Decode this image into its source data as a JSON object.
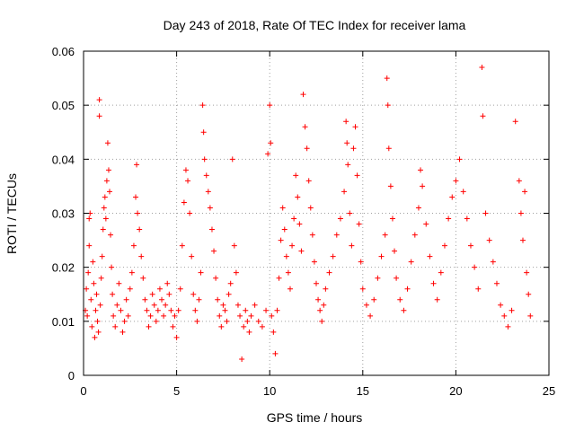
{
  "chart_data": {
    "type": "scatter",
    "title": "Day 243 of 2018, Rate Of TEC Index for receiver lama",
    "xlabel": "GPS time / hours",
    "ylabel": "ROTI / TECUs",
    "xlim": [
      0,
      25
    ],
    "ylim": [
      0,
      0.06
    ],
    "xticks": [
      0,
      5,
      10,
      15,
      20,
      25
    ],
    "yticks": [
      0,
      0.01,
      0.02,
      0.03,
      0.04,
      0.05,
      0.06
    ],
    "xtick_labels": [
      "0",
      "5",
      "10",
      "15",
      "20",
      "25"
    ],
    "ytick_labels": [
      "0",
      "0.01",
      "0.02",
      "0.03",
      "0.04",
      "0.05",
      "0.06"
    ],
    "grid": true,
    "marker": "+",
    "color": "#ff0000",
    "series": [
      {
        "points": [
          [
            0.1,
            0.012
          ],
          [
            0.15,
            0.016
          ],
          [
            0.2,
            0.011
          ],
          [
            0.25,
            0.019
          ],
          [
            0.3,
            0.024
          ],
          [
            0.3,
            0.029
          ],
          [
            0.35,
            0.03
          ],
          [
            0.4,
            0.014
          ],
          [
            0.45,
            0.009
          ],
          [
            0.5,
            0.021
          ],
          [
            0.55,
            0.017
          ],
          [
            0.6,
            0.007
          ],
          [
            0.65,
            0.012
          ],
          [
            0.7,
            0.015
          ],
          [
            0.75,
            0.01
          ],
          [
            0.8,
            0.008
          ],
          [
            0.85,
            0.051
          ],
          [
            0.85,
            0.048
          ],
          [
            0.9,
            0.013
          ],
          [
            0.95,
            0.018
          ],
          [
            1.0,
            0.022
          ],
          [
            1.05,
            0.027
          ],
          [
            1.1,
            0.031
          ],
          [
            1.15,
            0.033
          ],
          [
            1.2,
            0.029
          ],
          [
            1.25,
            0.036
          ],
          [
            1.3,
            0.043
          ],
          [
            1.35,
            0.038
          ],
          [
            1.4,
            0.034
          ],
          [
            1.45,
            0.026
          ],
          [
            1.5,
            0.02
          ],
          [
            1.55,
            0.015
          ],
          [
            1.6,
            0.011
          ],
          [
            1.7,
            0.009
          ],
          [
            1.8,
            0.013
          ],
          [
            1.9,
            0.017
          ],
          [
            2.0,
            0.012
          ],
          [
            2.1,
            0.008
          ],
          [
            2.2,
            0.01
          ],
          [
            2.3,
            0.014
          ],
          [
            2.4,
            0.011
          ],
          [
            2.5,
            0.016
          ],
          [
            2.6,
            0.019
          ],
          [
            2.7,
            0.024
          ],
          [
            2.8,
            0.033
          ],
          [
            2.85,
            0.039
          ],
          [
            2.9,
            0.03
          ],
          [
            3.0,
            0.027
          ],
          [
            3.1,
            0.022
          ],
          [
            3.2,
            0.018
          ],
          [
            3.3,
            0.014
          ],
          [
            3.4,
            0.012
          ],
          [
            3.5,
            0.009
          ],
          [
            3.6,
            0.011
          ],
          [
            3.7,
            0.015
          ],
          [
            3.8,
            0.013
          ],
          [
            3.9,
            0.01
          ],
          [
            4.0,
            0.012
          ],
          [
            4.1,
            0.016
          ],
          [
            4.2,
            0.014
          ],
          [
            4.3,
            0.011
          ],
          [
            4.4,
            0.013
          ],
          [
            4.5,
            0.017
          ],
          [
            4.6,
            0.015
          ],
          [
            4.7,
            0.012
          ],
          [
            4.8,
            0.009
          ],
          [
            4.9,
            0.011
          ],
          [
            5.0,
            0.007
          ],
          [
            5.1,
            0.012
          ],
          [
            5.2,
            0.016
          ],
          [
            5.3,
            0.024
          ],
          [
            5.4,
            0.032
          ],
          [
            5.5,
            0.038
          ],
          [
            5.6,
            0.036
          ],
          [
            5.7,
            0.03
          ],
          [
            5.8,
            0.022
          ],
          [
            5.9,
            0.015
          ],
          [
            6.0,
            0.012
          ],
          [
            6.1,
            0.01
          ],
          [
            6.2,
            0.014
          ],
          [
            6.3,
            0.019
          ],
          [
            6.4,
            0.05
          ],
          [
            6.45,
            0.045
          ],
          [
            6.5,
            0.04
          ],
          [
            6.6,
            0.037
          ],
          [
            6.7,
            0.034
          ],
          [
            6.8,
            0.031
          ],
          [
            6.9,
            0.027
          ],
          [
            7.0,
            0.023
          ],
          [
            7.1,
            0.018
          ],
          [
            7.2,
            0.014
          ],
          [
            7.3,
            0.011
          ],
          [
            7.4,
            0.009
          ],
          [
            7.5,
            0.013
          ],
          [
            7.6,
            0.012
          ],
          [
            7.7,
            0.01
          ],
          [
            7.8,
            0.015
          ],
          [
            7.9,
            0.017
          ],
          [
            8.0,
            0.04
          ],
          [
            8.1,
            0.024
          ],
          [
            8.2,
            0.019
          ],
          [
            8.3,
            0.013
          ],
          [
            8.4,
            0.011
          ],
          [
            8.5,
            0.003
          ],
          [
            8.6,
            0.009
          ],
          [
            8.7,
            0.012
          ],
          [
            8.8,
            0.01
          ],
          [
            8.9,
            0.008
          ],
          [
            9.0,
            0.011
          ],
          [
            9.2,
            0.013
          ],
          [
            9.4,
            0.01
          ],
          [
            9.6,
            0.009
          ],
          [
            9.8,
            0.012
          ],
          [
            9.9,
            0.041
          ],
          [
            10.0,
            0.05
          ],
          [
            10.05,
            0.043
          ],
          [
            10.1,
            0.011
          ],
          [
            10.2,
            0.008
          ],
          [
            10.3,
            0.004
          ],
          [
            10.4,
            0.012
          ],
          [
            10.5,
            0.018
          ],
          [
            10.6,
            0.025
          ],
          [
            10.7,
            0.031
          ],
          [
            10.8,
            0.027
          ],
          [
            10.9,
            0.022
          ],
          [
            11.0,
            0.019
          ],
          [
            11.1,
            0.016
          ],
          [
            11.2,
            0.024
          ],
          [
            11.3,
            0.029
          ],
          [
            11.4,
            0.037
          ],
          [
            11.5,
            0.033
          ],
          [
            11.6,
            0.028
          ],
          [
            11.7,
            0.023
          ],
          [
            11.8,
            0.052
          ],
          [
            11.9,
            0.046
          ],
          [
            12.0,
            0.042
          ],
          [
            12.1,
            0.036
          ],
          [
            12.2,
            0.031
          ],
          [
            12.3,
            0.026
          ],
          [
            12.4,
            0.021
          ],
          [
            12.5,
            0.017
          ],
          [
            12.6,
            0.014
          ],
          [
            12.7,
            0.012
          ],
          [
            12.8,
            0.01
          ],
          [
            12.9,
            0.013
          ],
          [
            13.0,
            0.016
          ],
          [
            13.2,
            0.019
          ],
          [
            13.4,
            0.022
          ],
          [
            13.6,
            0.026
          ],
          [
            13.8,
            0.029
          ],
          [
            14.0,
            0.034
          ],
          [
            14.1,
            0.047
          ],
          [
            14.15,
            0.043
          ],
          [
            14.2,
            0.039
          ],
          [
            14.3,
            0.03
          ],
          [
            14.4,
            0.024
          ],
          [
            14.5,
            0.042
          ],
          [
            14.6,
            0.046
          ],
          [
            14.7,
            0.037
          ],
          [
            14.8,
            0.028
          ],
          [
            14.9,
            0.021
          ],
          [
            15.0,
            0.016
          ],
          [
            15.2,
            0.013
          ],
          [
            15.4,
            0.011
          ],
          [
            15.6,
            0.014
          ],
          [
            15.8,
            0.018
          ],
          [
            16.0,
            0.022
          ],
          [
            16.2,
            0.026
          ],
          [
            16.3,
            0.055
          ],
          [
            16.35,
            0.05
          ],
          [
            16.4,
            0.042
          ],
          [
            16.5,
            0.035
          ],
          [
            16.6,
            0.029
          ],
          [
            16.7,
            0.023
          ],
          [
            16.8,
            0.018
          ],
          [
            17.0,
            0.014
          ],
          [
            17.2,
            0.012
          ],
          [
            17.4,
            0.016
          ],
          [
            17.6,
            0.021
          ],
          [
            17.8,
            0.026
          ],
          [
            18.0,
            0.031
          ],
          [
            18.1,
            0.038
          ],
          [
            18.2,
            0.035
          ],
          [
            18.4,
            0.028
          ],
          [
            18.6,
            0.022
          ],
          [
            18.8,
            0.017
          ],
          [
            19.0,
            0.014
          ],
          [
            19.2,
            0.019
          ],
          [
            19.4,
            0.024
          ],
          [
            19.6,
            0.029
          ],
          [
            19.8,
            0.033
          ],
          [
            20.0,
            0.036
          ],
          [
            20.2,
            0.04
          ],
          [
            20.4,
            0.034
          ],
          [
            20.6,
            0.029
          ],
          [
            20.8,
            0.024
          ],
          [
            21.0,
            0.02
          ],
          [
            21.2,
            0.016
          ],
          [
            21.4,
            0.057
          ],
          [
            21.45,
            0.048
          ],
          [
            21.6,
            0.03
          ],
          [
            21.8,
            0.025
          ],
          [
            22.0,
            0.021
          ],
          [
            22.2,
            0.017
          ],
          [
            22.4,
            0.013
          ],
          [
            22.6,
            0.011
          ],
          [
            22.8,
            0.009
          ],
          [
            23.0,
            0.012
          ],
          [
            23.2,
            0.047
          ],
          [
            23.4,
            0.036
          ],
          [
            23.5,
            0.03
          ],
          [
            23.6,
            0.025
          ],
          [
            23.7,
            0.034
          ],
          [
            23.8,
            0.019
          ],
          [
            23.9,
            0.015
          ],
          [
            24.0,
            0.011
          ]
        ]
      }
    ]
  }
}
